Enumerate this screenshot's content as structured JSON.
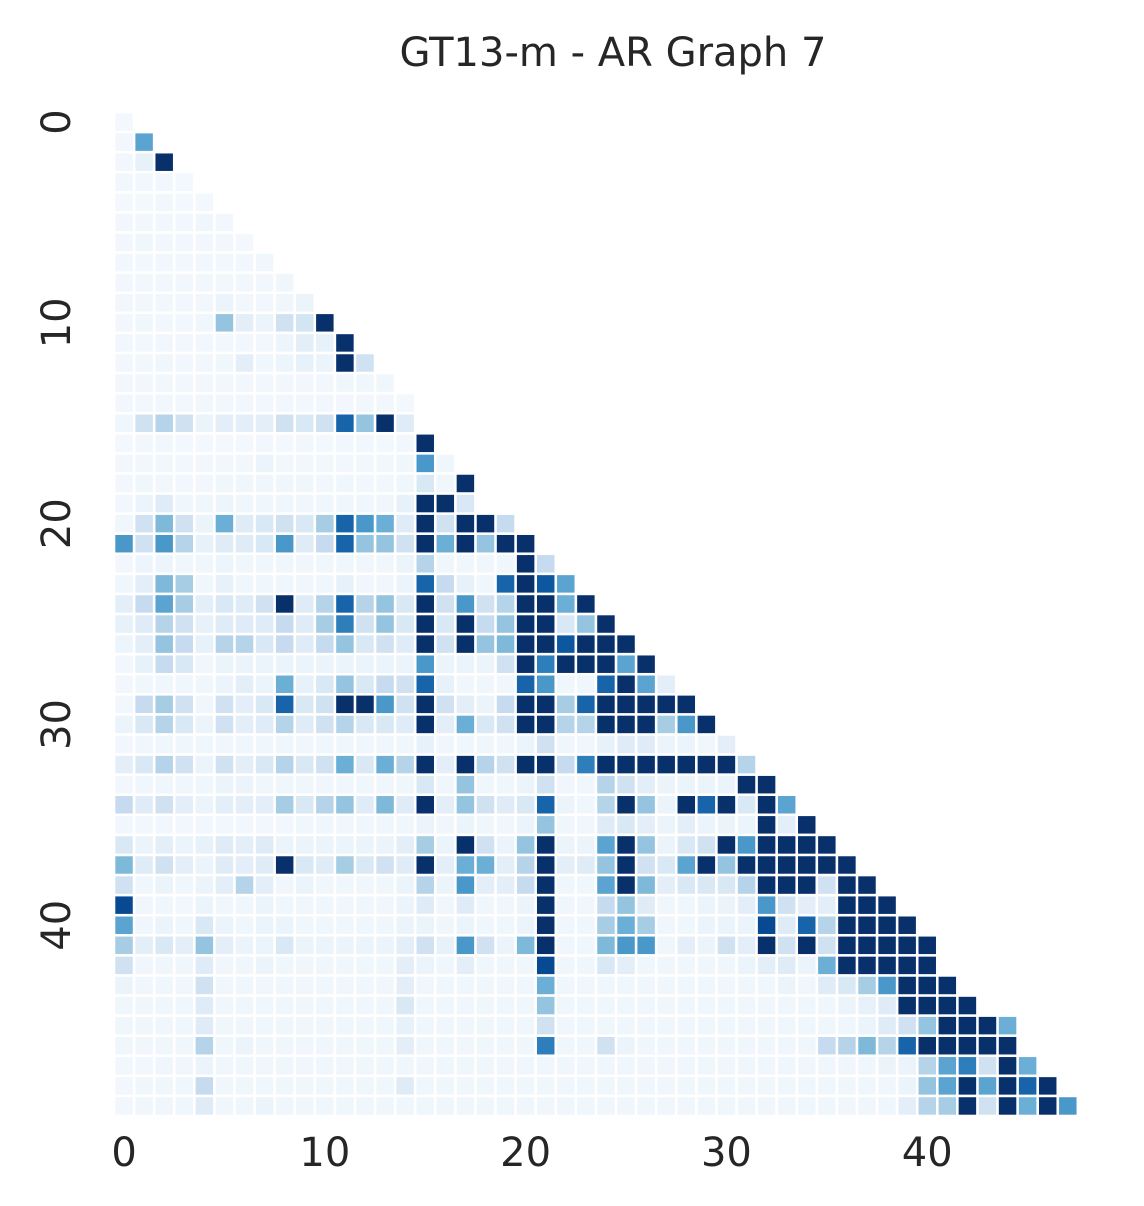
{
  "chart_data": {
    "type": "heatmap",
    "title": "GT13-m - AR Graph 7",
    "xlabel": "",
    "ylabel": "",
    "mask": "lower-triangle",
    "n": 49,
    "x_ticks": [
      0,
      10,
      20,
      30,
      40
    ],
    "y_ticks": [
      0,
      10,
      20,
      30,
      40
    ],
    "value_range": [
      0,
      1
    ],
    "colormap": "Blues",
    "grid": false,
    "rows": [
      [
        0.02
      ],
      [
        0.03,
        0.55
      ],
      [
        0.03,
        0.08,
        1.0
      ],
      [
        0.03,
        0.03,
        0.03,
        0.02
      ],
      [
        0.02,
        0.02,
        0.03,
        0.02,
        0.02
      ],
      [
        0.03,
        0.03,
        0.03,
        0.03,
        0.04,
        0.03
      ],
      [
        0.03,
        0.04,
        0.03,
        0.03,
        0.03,
        0.03,
        0.02
      ],
      [
        0.03,
        0.03,
        0.03,
        0.03,
        0.03,
        0.03,
        0.03,
        0.04
      ],
      [
        0.03,
        0.03,
        0.03,
        0.03,
        0.03,
        0.03,
        0.03,
        0.03,
        0.04
      ],
      [
        0.03,
        0.03,
        0.03,
        0.03,
        0.03,
        0.06,
        0.03,
        0.03,
        0.04,
        0.06
      ],
      [
        0.03,
        0.04,
        0.03,
        0.03,
        0.04,
        0.4,
        0.1,
        0.06,
        0.2,
        0.18,
        1.0
      ],
      [
        0.03,
        0.03,
        0.03,
        0.03,
        0.03,
        0.03,
        0.03,
        0.03,
        0.05,
        0.1,
        0.08,
        1.0
      ],
      [
        0.03,
        0.03,
        0.04,
        0.03,
        0.03,
        0.04,
        0.1,
        0.04,
        0.05,
        0.08,
        0.06,
        1.0,
        0.2
      ],
      [
        0.03,
        0.03,
        0.03,
        0.03,
        0.03,
        0.03,
        0.03,
        0.03,
        0.03,
        0.03,
        0.03,
        0.04,
        0.04,
        0.04
      ],
      [
        0.03,
        0.03,
        0.03,
        0.03,
        0.03,
        0.03,
        0.03,
        0.03,
        0.03,
        0.03,
        0.03,
        0.03,
        0.03,
        0.03,
        0.02
      ],
      [
        0.04,
        0.2,
        0.3,
        0.2,
        0.06,
        0.1,
        0.1,
        0.1,
        0.2,
        0.15,
        0.2,
        0.8,
        0.4,
        1.0,
        0.12
      ],
      [
        0.02,
        0.03,
        0.03,
        0.02,
        0.02,
        0.02,
        0.02,
        0.03,
        0.02,
        0.03,
        0.02,
        0.03,
        0.03,
        0.02,
        0.03,
        1.0
      ],
      [
        0.03,
        0.03,
        0.03,
        0.03,
        0.03,
        0.03,
        0.03,
        0.06,
        0.03,
        0.03,
        0.03,
        0.03,
        0.03,
        0.03,
        0.04,
        0.6,
        0.04
      ],
      [
        0.03,
        0.04,
        0.03,
        0.03,
        0.03,
        0.04,
        0.04,
        0.04,
        0.04,
        0.04,
        0.03,
        0.04,
        0.03,
        0.03,
        0.04,
        0.15,
        0.04,
        1.0
      ],
      [
        0.03,
        0.06,
        0.12,
        0.04,
        0.04,
        0.05,
        0.04,
        0.04,
        0.04,
        0.04,
        0.04,
        0.04,
        0.04,
        0.04,
        0.08,
        1.0,
        1.0,
        0.15
      ],
      [
        0.04,
        0.2,
        0.45,
        0.2,
        0.06,
        0.5,
        0.12,
        0.15,
        0.2,
        0.15,
        0.35,
        0.8,
        0.6,
        0.5,
        0.12,
        1.0,
        0.2,
        1.0,
        1.0,
        0.25
      ],
      [
        0.6,
        0.2,
        0.6,
        0.3,
        0.08,
        0.12,
        0.12,
        0.15,
        0.6,
        0.12,
        0.25,
        0.8,
        0.4,
        0.4,
        0.2,
        1.0,
        0.5,
        1.0,
        0.4,
        1.0,
        1.0
      ],
      [
        0.03,
        0.05,
        0.05,
        0.04,
        0.04,
        0.05,
        0.04,
        0.04,
        0.04,
        0.04,
        0.04,
        0.04,
        0.04,
        0.04,
        0.06,
        0.3,
        0.04,
        0.04,
        0.04,
        0.04,
        1.0,
        0.25
      ],
      [
        0.04,
        0.1,
        0.45,
        0.35,
        0.04,
        0.08,
        0.04,
        0.04,
        0.04,
        0.04,
        0.04,
        0.08,
        0.04,
        0.04,
        0.06,
        0.8,
        0.25,
        0.08,
        0.04,
        0.8,
        1.0,
        0.85,
        0.55
      ],
      [
        0.1,
        0.25,
        0.55,
        0.35,
        0.1,
        0.15,
        0.12,
        0.2,
        1.0,
        0.12,
        0.3,
        0.8,
        0.3,
        0.4,
        0.15,
        1.0,
        0.2,
        0.6,
        0.2,
        0.3,
        1.0,
        1.0,
        0.5,
        1.0
      ],
      [
        0.08,
        0.12,
        0.3,
        0.2,
        0.08,
        0.12,
        0.12,
        0.12,
        0.25,
        0.12,
        0.35,
        0.7,
        0.2,
        0.4,
        0.15,
        1.0,
        0.15,
        1.0,
        0.25,
        0.4,
        1.0,
        1.0,
        0.15,
        0.4,
        1.0
      ],
      [
        0.05,
        0.1,
        0.4,
        0.25,
        0.08,
        0.3,
        0.3,
        0.15,
        0.25,
        0.12,
        0.25,
        0.4,
        0.15,
        0.2,
        0.12,
        1.0,
        0.2,
        1.0,
        0.4,
        0.45,
        1.0,
        1.0,
        0.85,
        1.0,
        1.0,
        1.0
      ],
      [
        0.03,
        0.08,
        0.25,
        0.15,
        0.04,
        0.06,
        0.06,
        0.06,
        0.06,
        0.06,
        0.06,
        0.06,
        0.06,
        0.06,
        0.06,
        0.6,
        0.06,
        0.06,
        0.06,
        0.2,
        1.0,
        0.7,
        1.0,
        1.0,
        1.0,
        0.55,
        1.0
      ],
      [
        0.03,
        0.04,
        0.04,
        0.04,
        0.04,
        0.06,
        0.1,
        0.06,
        0.5,
        0.08,
        0.15,
        0.4,
        0.15,
        0.25,
        0.2,
        0.8,
        0.08,
        0.04,
        0.04,
        0.04,
        0.8,
        0.6,
        0.04,
        0.04,
        0.8,
        1.0,
        0.55,
        0.1
      ],
      [
        0.03,
        0.25,
        0.35,
        0.2,
        0.04,
        0.2,
        0.1,
        0.15,
        0.8,
        0.15,
        0.2,
        1.0,
        1.0,
        0.6,
        0.2,
        1.0,
        0.2,
        0.1,
        0.06,
        0.25,
        1.0,
        1.0,
        0.35,
        0.8,
        1.0,
        1.0,
        1.0,
        1.0,
        1.0
      ],
      [
        0.06,
        0.15,
        0.3,
        0.15,
        0.06,
        0.2,
        0.1,
        0.12,
        0.3,
        0.12,
        0.2,
        0.3,
        0.15,
        0.15,
        0.12,
        1.0,
        0.1,
        0.5,
        0.15,
        0.2,
        1.0,
        1.0,
        0.3,
        0.3,
        1.0,
        1.0,
        1.0,
        0.35,
        0.6,
        1.0
      ],
      [
        0.03,
        0.04,
        0.04,
        0.04,
        0.04,
        0.04,
        0.04,
        0.04,
        0.04,
        0.04,
        0.04,
        0.04,
        0.04,
        0.04,
        0.04,
        0.08,
        0.04,
        0.04,
        0.04,
        0.04,
        0.06,
        0.2,
        0.04,
        0.04,
        0.08,
        0.12,
        0.12,
        0.06,
        0.06,
        0.04,
        0.1
      ],
      [
        0.1,
        0.15,
        0.3,
        0.2,
        0.06,
        0.2,
        0.1,
        0.15,
        0.3,
        0.15,
        0.2,
        0.5,
        0.15,
        0.5,
        0.3,
        1.0,
        0.1,
        1.0,
        0.3,
        0.2,
        1.0,
        1.0,
        0.25,
        0.7,
        1.0,
        1.0,
        1.0,
        1.0,
        1.0,
        1.0,
        1.0,
        0.3
      ],
      [
        0.03,
        0.04,
        0.04,
        0.04,
        0.04,
        0.06,
        0.06,
        0.04,
        0.04,
        0.04,
        0.04,
        0.04,
        0.04,
        0.04,
        0.04,
        0.15,
        0.04,
        0.4,
        0.04,
        0.04,
        0.06,
        0.2,
        0.04,
        0.04,
        0.3,
        0.2,
        0.1,
        0.06,
        0.06,
        0.06,
        0.06,
        1.0,
        1.0
      ],
      [
        0.25,
        0.12,
        0.2,
        0.1,
        0.06,
        0.1,
        0.1,
        0.1,
        0.35,
        0.15,
        0.3,
        0.4,
        0.12,
        0.45,
        0.12,
        1.0,
        0.1,
        0.4,
        0.2,
        0.12,
        0.15,
        0.8,
        0.06,
        0.04,
        0.3,
        1.0,
        0.4,
        0.06,
        1.0,
        0.8,
        1.0,
        0.15,
        1.0,
        0.55
      ],
      [
        0.03,
        0.03,
        0.03,
        0.03,
        0.03,
        0.03,
        0.03,
        0.03,
        0.03,
        0.04,
        0.04,
        0.04,
        0.04,
        0.04,
        0.04,
        0.06,
        0.04,
        0.06,
        0.04,
        0.04,
        0.06,
        0.4,
        0.04,
        0.04,
        0.12,
        0.15,
        0.1,
        0.06,
        0.1,
        0.06,
        0.06,
        0.06,
        1.0,
        0.1,
        1.0
      ],
      [
        0.15,
        0.06,
        0.1,
        0.06,
        0.08,
        0.12,
        0.1,
        0.12,
        0.06,
        0.06,
        0.06,
        0.06,
        0.06,
        0.06,
        0.1,
        0.35,
        0.06,
        1.0,
        0.2,
        0.06,
        0.4,
        1.0,
        0.06,
        0.06,
        0.55,
        1.0,
        0.4,
        0.06,
        0.15,
        0.2,
        1.0,
        0.6,
        1.0,
        1.0,
        1.0,
        1.0
      ],
      [
        0.45,
        0.12,
        0.2,
        0.1,
        0.06,
        0.12,
        0.1,
        0.12,
        1.0,
        0.15,
        0.12,
        0.35,
        0.15,
        0.2,
        0.12,
        1.0,
        0.1,
        0.5,
        0.5,
        0.1,
        0.3,
        1.0,
        0.1,
        0.12,
        0.4,
        1.0,
        0.2,
        0.15,
        0.55,
        1.0,
        0.4,
        1.0,
        1.0,
        1.0,
        1.0,
        1.0,
        1.0
      ],
      [
        0.2,
        0.04,
        0.06,
        0.04,
        0.06,
        0.1,
        0.3,
        0.1,
        0.04,
        0.06,
        0.04,
        0.04,
        0.04,
        0.04,
        0.06,
        0.3,
        0.06,
        0.6,
        0.1,
        0.1,
        0.25,
        1.0,
        0.04,
        0.04,
        0.55,
        1.0,
        0.45,
        0.1,
        0.15,
        0.15,
        0.15,
        0.3,
        1.0,
        1.0,
        1.0,
        0.2,
        1.0,
        1.0
      ],
      [
        0.9,
        0.04,
        0.04,
        0.03,
        0.06,
        0.04,
        0.04,
        0.06,
        0.04,
        0.04,
        0.04,
        0.04,
        0.04,
        0.04,
        0.06,
        0.12,
        0.04,
        0.12,
        0.04,
        0.04,
        0.06,
        1.0,
        0.04,
        0.04,
        0.25,
        0.4,
        0.12,
        0.04,
        0.04,
        0.06,
        0.06,
        0.1,
        0.6,
        0.2,
        0.1,
        0.1,
        1.0,
        1.0,
        1.0
      ],
      [
        0.55,
        0.04,
        0.06,
        0.04,
        0.15,
        0.06,
        0.04,
        0.06,
        0.06,
        0.04,
        0.04,
        0.04,
        0.04,
        0.04,
        0.06,
        0.06,
        0.04,
        0.06,
        0.04,
        0.04,
        0.06,
        1.0,
        0.04,
        0.04,
        0.35,
        0.5,
        0.35,
        0.04,
        0.04,
        0.06,
        0.06,
        0.06,
        0.9,
        0.12,
        0.8,
        0.3,
        1.0,
        1.0,
        1.0,
        1.0
      ],
      [
        0.35,
        0.1,
        0.15,
        0.1,
        0.4,
        0.1,
        0.06,
        0.06,
        0.15,
        0.06,
        0.06,
        0.06,
        0.06,
        0.06,
        0.1,
        0.2,
        0.08,
        0.6,
        0.2,
        0.06,
        0.45,
        1.0,
        0.04,
        0.04,
        0.45,
        0.6,
        0.6,
        0.04,
        0.1,
        0.06,
        0.2,
        0.1,
        1.0,
        0.2,
        1.0,
        0.2,
        1.0,
        1.0,
        1.0,
        1.0,
        1.0
      ],
      [
        0.2,
        0.04,
        0.04,
        0.04,
        0.12,
        0.04,
        0.04,
        0.06,
        0.04,
        0.04,
        0.04,
        0.04,
        0.04,
        0.04,
        0.1,
        0.06,
        0.04,
        0.1,
        0.04,
        0.04,
        0.04,
        0.9,
        0.04,
        0.04,
        0.15,
        0.1,
        0.04,
        0.04,
        0.04,
        0.04,
        0.04,
        0.06,
        0.1,
        0.12,
        0.06,
        0.5,
        1.0,
        1.0,
        1.0,
        1.0,
        1.0
      ],
      [
        0.06,
        0.04,
        0.04,
        0.04,
        0.2,
        0.04,
        0.04,
        0.04,
        0.04,
        0.04,
        0.04,
        0.04,
        0.04,
        0.04,
        0.1,
        0.04,
        0.04,
        0.04,
        0.04,
        0.04,
        0.04,
        0.5,
        0.04,
        0.04,
        0.04,
        0.04,
        0.04,
        0.04,
        0.04,
        0.04,
        0.04,
        0.04,
        0.04,
        0.06,
        0.04,
        0.12,
        0.15,
        0.35,
        0.6,
        1.0,
        1.0,
        1.0
      ],
      [
        0.04,
        0.04,
        0.04,
        0.04,
        0.12,
        0.04,
        0.04,
        0.04,
        0.04,
        0.04,
        0.04,
        0.04,
        0.04,
        0.04,
        0.15,
        0.04,
        0.04,
        0.04,
        0.04,
        0.04,
        0.04,
        0.4,
        0.04,
        0.04,
        0.04,
        0.04,
        0.04,
        0.04,
        0.04,
        0.04,
        0.04,
        0.04,
        0.04,
        0.04,
        0.04,
        0.04,
        0.06,
        0.08,
        0.12,
        1.0,
        1.0,
        1.0,
        1.0
      ],
      [
        0.04,
        0.04,
        0.04,
        0.04,
        0.12,
        0.04,
        0.04,
        0.04,
        0.04,
        0.04,
        0.04,
        0.04,
        0.04,
        0.04,
        0.08,
        0.04,
        0.04,
        0.04,
        0.04,
        0.04,
        0.04,
        0.2,
        0.04,
        0.04,
        0.04,
        0.04,
        0.04,
        0.04,
        0.04,
        0.04,
        0.04,
        0.04,
        0.04,
        0.04,
        0.04,
        0.04,
        0.04,
        0.06,
        0.12,
        0.2,
        0.4,
        1.0,
        1.0,
        1.0,
        0.5
      ],
      [
        0.04,
        0.04,
        0.04,
        0.04,
        0.3,
        0.04,
        0.06,
        0.04,
        0.04,
        0.04,
        0.04,
        0.04,
        0.04,
        0.04,
        0.1,
        0.04,
        0.04,
        0.04,
        0.04,
        0.04,
        0.04,
        0.7,
        0.04,
        0.04,
        0.2,
        0.06,
        0.04,
        0.04,
        0.04,
        0.04,
        0.04,
        0.04,
        0.04,
        0.04,
        0.04,
        0.25,
        0.3,
        0.45,
        0.3,
        0.8,
        1.0,
        1.0,
        1.0,
        1.0,
        1.0
      ],
      [
        0.03,
        0.03,
        0.04,
        0.04,
        0.06,
        0.04,
        0.04,
        0.04,
        0.04,
        0.04,
        0.04,
        0.04,
        0.04,
        0.04,
        0.04,
        0.04,
        0.04,
        0.04,
        0.04,
        0.04,
        0.04,
        0.04,
        0.04,
        0.04,
        0.04,
        0.04,
        0.04,
        0.04,
        0.04,
        0.04,
        0.04,
        0.04,
        0.04,
        0.04,
        0.04,
        0.04,
        0.04,
        0.04,
        0.06,
        0.06,
        0.3,
        0.55,
        0.7,
        0.2,
        1.0,
        0.5
      ],
      [
        0.03,
        0.04,
        0.04,
        0.04,
        0.25,
        0.04,
        0.04,
        0.04,
        0.04,
        0.04,
        0.04,
        0.04,
        0.04,
        0.04,
        0.12,
        0.04,
        0.04,
        0.04,
        0.04,
        0.04,
        0.04,
        0.04,
        0.04,
        0.04,
        0.04,
        0.04,
        0.04,
        0.04,
        0.04,
        0.04,
        0.04,
        0.04,
        0.04,
        0.04,
        0.04,
        0.04,
        0.04,
        0.04,
        0.04,
        0.06,
        0.4,
        0.55,
        1.0,
        0.55,
        1.0,
        0.8,
        1.0
      ],
      [
        0.03,
        0.04,
        0.04,
        0.04,
        0.12,
        0.04,
        0.04,
        0.06,
        0.04,
        0.04,
        0.04,
        0.04,
        0.04,
        0.04,
        0.04,
        0.04,
        0.04,
        0.04,
        0.04,
        0.04,
        0.04,
        0.04,
        0.04,
        0.04,
        0.04,
        0.04,
        0.04,
        0.04,
        0.04,
        0.04,
        0.04,
        0.04,
        0.04,
        0.04,
        0.04,
        0.04,
        0.04,
        0.04,
        0.04,
        0.1,
        0.3,
        0.35,
        1.0,
        0.2,
        1.0,
        0.5,
        1.0,
        0.6
      ]
    ]
  }
}
